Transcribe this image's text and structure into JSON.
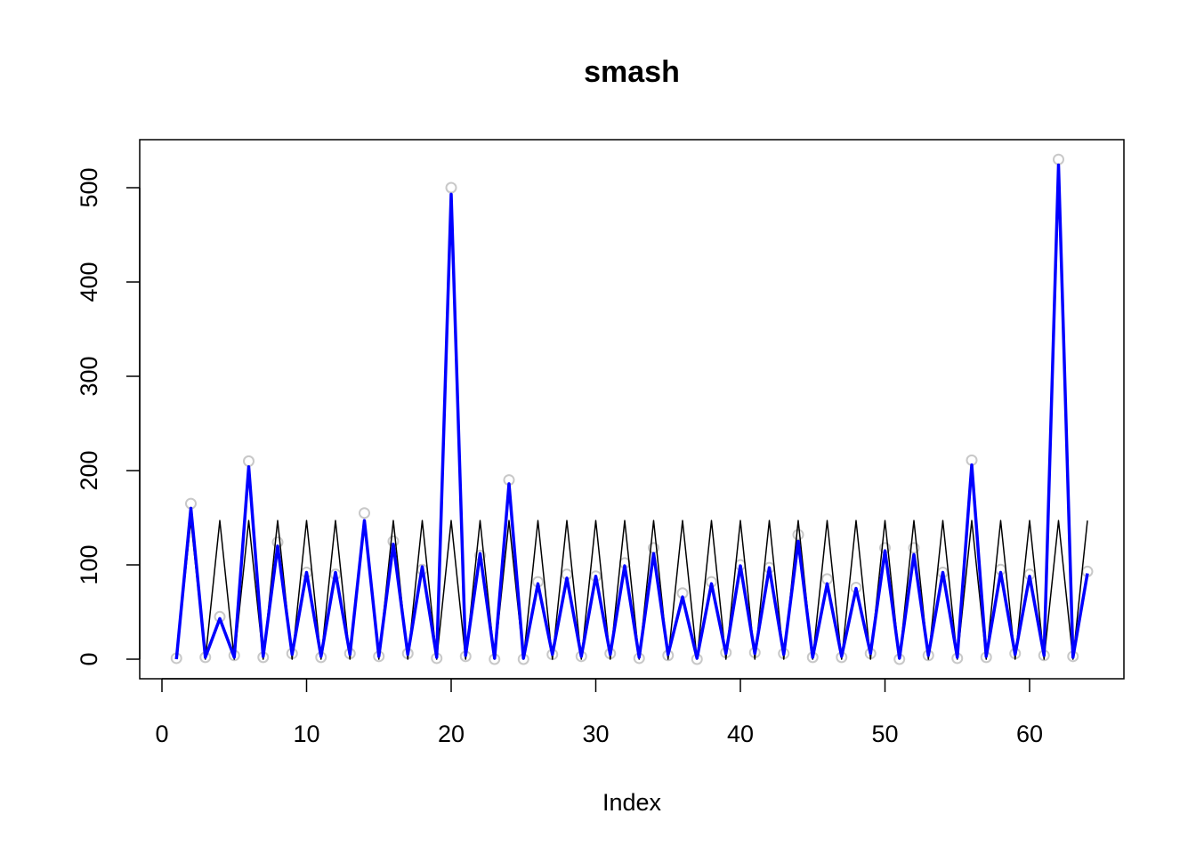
{
  "chart_data": {
    "type": "line",
    "title": "smash",
    "xlabel": "Index",
    "ylabel": "",
    "xlim": [
      1,
      64
    ],
    "ylim": [
      0,
      530
    ],
    "x_ticks": [
      0,
      10,
      20,
      30,
      40,
      50,
      60
    ],
    "y_ticks": [
      0,
      100,
      200,
      300,
      400,
      500
    ],
    "grid": false,
    "legend": "none",
    "x": [
      1,
      2,
      3,
      4,
      5,
      6,
      7,
      8,
      9,
      10,
      11,
      12,
      13,
      14,
      15,
      16,
      17,
      18,
      19,
      20,
      21,
      22,
      23,
      24,
      25,
      26,
      27,
      28,
      29,
      30,
      31,
      32,
      33,
      34,
      35,
      36,
      37,
      38,
      39,
      40,
      41,
      42,
      43,
      44,
      45,
      46,
      47,
      48,
      49,
      50,
      51,
      52,
      53,
      54,
      55,
      56,
      57,
      58,
      59,
      60,
      61,
      62,
      63,
      64
    ],
    "series": [
      {
        "style": "points",
        "color": "#c8c8c8",
        "values": [
          1,
          165,
          2,
          45,
          4,
          210,
          2,
          124,
          6,
          92,
          2,
          90,
          6,
          155,
          3,
          125,
          6,
          95,
          1,
          500,
          3,
          110,
          0,
          190,
          0,
          82,
          5,
          90,
          3,
          88,
          6,
          102,
          1,
          118,
          4,
          70,
          0,
          82,
          7,
          100,
          7,
          97,
          6,
          132,
          2,
          85,
          2,
          76,
          6,
          118,
          0,
          118,
          4,
          92,
          1,
          211,
          2,
          95,
          6,
          90,
          4,
          530,
          3,
          93
        ]
      },
      {
        "style": "line",
        "color": "#000000",
        "values": [
          0,
          147,
          0,
          147,
          0,
          147,
          0,
          147,
          0,
          147,
          0,
          147,
          0,
          147,
          0,
          147,
          0,
          147,
          0,
          147,
          0,
          147,
          0,
          147,
          0,
          147,
          0,
          147,
          0,
          147,
          0,
          147,
          0,
          147,
          0,
          147,
          0,
          147,
          0,
          147,
          0,
          147,
          0,
          147,
          0,
          147,
          0,
          147,
          0,
          147,
          0,
          147,
          0,
          147,
          0,
          147,
          0,
          147,
          0,
          147,
          0,
          147,
          0,
          147
        ]
      },
      {
        "style": "line",
        "color": "#0000ff",
        "values": [
          0,
          160,
          2,
          43,
          2,
          204,
          3,
          120,
          5,
          92,
          3,
          92,
          5,
          147,
          3,
          122,
          5,
          98,
          2,
          493,
          4,
          112,
          1,
          186,
          1,
          80,
          5,
          86,
          3,
          88,
          5,
          99,
          2,
          112,
          5,
          66,
          1,
          80,
          6,
          99,
          6,
          97,
          5,
          125,
          2,
          80,
          3,
          75,
          6,
          115,
          1,
          111,
          4,
          92,
          2,
          206,
          3,
          92,
          5,
          88,
          4,
          524,
          2,
          91
        ]
      }
    ]
  }
}
